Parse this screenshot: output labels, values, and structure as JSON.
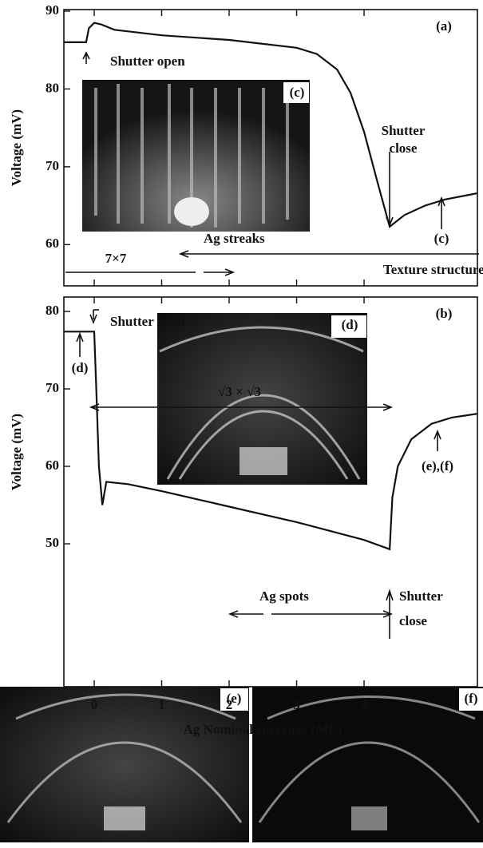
{
  "chart_data": [
    {
      "type": "line",
      "panel_label": "(a)",
      "ylabel": "Voltage (mV)",
      "inset_label": "(c)",
      "xlim": [
        -0.45,
        5.68
      ],
      "xticks": [
        0,
        1,
        2,
        3,
        4
      ],
      "ylim": [
        54.7,
        90.2
      ],
      "yticks": [
        60,
        70,
        80,
        90
      ],
      "series": [
        {
          "color": "#111111",
          "x": [
            -0.45,
            -0.12,
            -0.08,
            0.0,
            0.1,
            0.3,
            1,
            2,
            3,
            3.3,
            3.6,
            3.8,
            4.0,
            4.2,
            4.38,
            4.6,
            4.9,
            5.2,
            5.68
          ],
          "values": [
            86,
            86,
            87.8,
            88.5,
            88.3,
            87.6,
            86.9,
            86.3,
            85.3,
            84.5,
            82.5,
            79.5,
            74.5,
            68,
            62.3,
            63.8,
            65,
            65.8,
            66.6
          ]
        }
      ],
      "annotations": [
        {
          "text": "Shutter open"
        },
        {
          "text": "Shutter"
        },
        {
          "text": "close"
        },
        {
          "text": "(c)"
        },
        {
          "text": "Ag streaks"
        },
        {
          "text": "7×7"
        },
        {
          "text": "Texture structure"
        }
      ]
    },
    {
      "type": "line",
      "panel_label": "(b)",
      "ylabel": "Voltage (mV)",
      "inset_label": "(d)",
      "xlabel": "Ag Nominal coverage (ML)",
      "xlim": [
        -0.45,
        5.68
      ],
      "xticks": [
        0,
        1,
        2,
        3,
        4
      ],
      "ylim": [
        31.55,
        81.86
      ],
      "yticks": [
        50,
        60,
        70,
        80
      ],
      "series": [
        {
          "color": "#111111",
          "x": [
            -0.45,
            0.0,
            0.03,
            0.07,
            0.12,
            0.18,
            0.5,
            1,
            2,
            3,
            4,
            4.38,
            4.42,
            4.5,
            4.7,
            5.0,
            5.3,
            5.68
          ],
          "values": [
            77.4,
            77.4,
            70,
            60,
            55,
            58,
            57.7,
            56.8,
            54.8,
            52.8,
            50.5,
            49.3,
            56,
            60,
            63.5,
            65.5,
            66.3,
            66.8
          ]
        }
      ],
      "annotations": [
        {
          "text": "Shutter open"
        },
        {
          "text": "(d)"
        },
        {
          "text": "(e),(f)"
        },
        {
          "text": "√3 × √3"
        },
        {
          "text": "Ag spots"
        },
        {
          "text": "Shutter"
        },
        {
          "text": "close"
        }
      ]
    }
  ],
  "images": [
    {
      "label": "(e)"
    },
    {
      "label": "(f)"
    }
  ]
}
